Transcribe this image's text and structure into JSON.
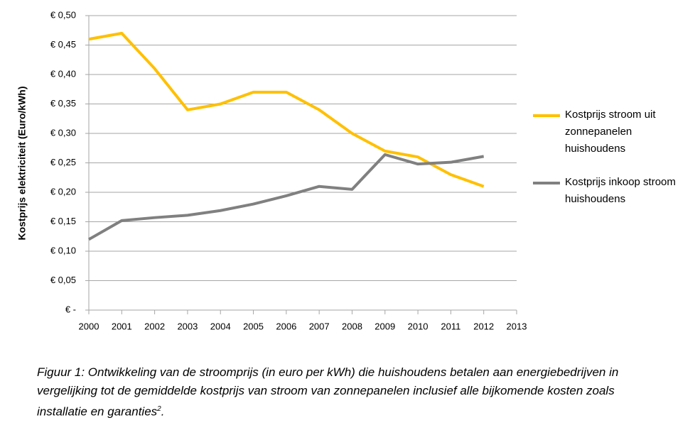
{
  "chart_data": {
    "type": "line",
    "y_axis_label": "Kostprijs elektriciteit (Euro/kWh)",
    "x": [
      2000,
      2001,
      2002,
      2003,
      2004,
      2005,
      2006,
      2007,
      2008,
      2009,
      2010,
      2011,
      2012
    ],
    "series": [
      {
        "name": "Kostprijs stroom uit zonnepanelen huishoudens",
        "color": "#ffc000",
        "values": [
          0.46,
          0.47,
          0.41,
          0.34,
          0.35,
          0.37,
          0.37,
          0.34,
          0.3,
          0.27,
          0.26,
          0.23,
          0.21
        ]
      },
      {
        "name": "Kostprijs inkoop stroom huishoudens",
        "color": "#808080",
        "values": [
          0.12,
          0.152,
          0.157,
          0.161,
          0.169,
          0.18,
          0.194,
          0.21,
          0.205,
          0.264,
          0.248,
          0.251,
          0.261
        ]
      }
    ],
    "xlim": [
      2000,
      2013
    ],
    "xticks": [
      2000,
      2001,
      2002,
      2003,
      2004,
      2005,
      2006,
      2007,
      2008,
      2009,
      2010,
      2011,
      2012,
      2013
    ],
    "ylim": [
      0,
      0.5
    ],
    "yticks": [
      {
        "value": 0,
        "label": "€ -"
      },
      {
        "value": 0.05,
        "label": "€ 0,05"
      },
      {
        "value": 0.1,
        "label": "€ 0,10"
      },
      {
        "value": 0.15,
        "label": "€ 0,15"
      },
      {
        "value": 0.2,
        "label": "€ 0,20"
      },
      {
        "value": 0.25,
        "label": "€ 0,25"
      },
      {
        "value": 0.3,
        "label": "€ 0,30"
      },
      {
        "value": 0.35,
        "label": "€ 0,35"
      },
      {
        "value": 0.4,
        "label": "€ 0,40"
      },
      {
        "value": 0.45,
        "label": "€ 0,45"
      },
      {
        "value": 0.5,
        "label": "€ 0,50"
      }
    ],
    "grid": true,
    "legend": "right"
  },
  "caption": {
    "text": "Figuur 1:  Ontwikkeling van de stroomprijs (in euro per kWh) die huishoudens betalen aan energiebedrijven in vergelijking tot de gemiddelde kostprijs van stroom van zonnepanelen inclusief alle bijkomende kosten zoals installatie en garanties",
    "superscript": "2",
    "end": "."
  }
}
